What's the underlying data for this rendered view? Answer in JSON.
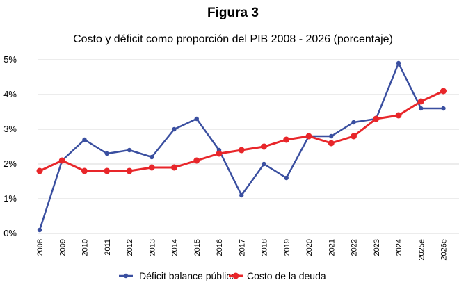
{
  "figure_label": "Figura 3",
  "chart_data": {
    "type": "line",
    "title": "Costo y déficit como proporción del PIB 2008 - 2026 (porcentaje)",
    "xlabel": "",
    "ylabel": "",
    "ylim": [
      0,
      5
    ],
    "yticks": [
      "0%",
      "1%",
      "2%",
      "3%",
      "4%",
      "5%"
    ],
    "grid": true,
    "legend_position": "bottom",
    "categories": [
      "2008",
      "2009",
      "2010",
      "2011",
      "2012",
      "2013",
      "2014",
      "2015",
      "2016",
      "2017",
      "2018",
      "2019",
      "2020",
      "2021",
      "2022",
      "2023",
      "2024",
      "2025e",
      "2026e"
    ],
    "series": [
      {
        "name": "Déficit balance público",
        "color": "#3a4fa0",
        "values": [
          0.1,
          2.1,
          2.7,
          2.3,
          2.4,
          2.2,
          3.0,
          3.3,
          2.4,
          1.1,
          2.0,
          1.6,
          2.8,
          2.8,
          3.2,
          3.3,
          4.9,
          3.6,
          3.6
        ]
      },
      {
        "name": "Costo de la deuda",
        "color": "#e8262a",
        "values": [
          1.8,
          2.1,
          1.8,
          1.8,
          1.8,
          1.9,
          1.9,
          2.1,
          2.3,
          2.4,
          2.5,
          2.7,
          2.8,
          2.6,
          2.8,
          3.3,
          3.4,
          3.8,
          4.1
        ]
      }
    ]
  }
}
